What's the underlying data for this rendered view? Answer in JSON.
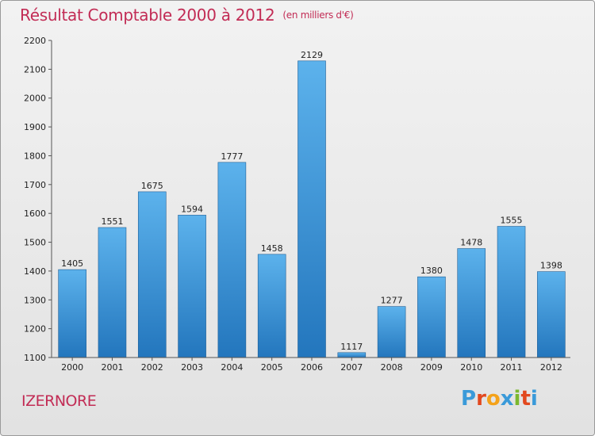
{
  "page": {
    "title": "Résultat Comptable 2000 à 2012",
    "subtitle": "(en milliers d'€)",
    "commune": "IZERNORE",
    "logo": {
      "letters": [
        "P",
        "r",
        "o",
        "x",
        "i",
        "t",
        "i"
      ],
      "colors": [
        "#3a9ad9",
        "#e2481e",
        "#f4a21a",
        "#3a9ad9",
        "#7cb82f",
        "#e2481e",
        "#3a9ad9"
      ]
    }
  },
  "chart_data": {
    "type": "bar",
    "title": "Résultat Comptable 2000 à 2012",
    "subtitle": "(en milliers d'€)",
    "categories": [
      "2000",
      "2001",
      "2002",
      "2003",
      "2004",
      "2005",
      "2006",
      "2007",
      "2008",
      "2009",
      "2010",
      "2011",
      "2012"
    ],
    "values": [
      1405,
      1551,
      1675,
      1594,
      1777,
      1458,
      2129,
      1117,
      1277,
      1380,
      1478,
      1555,
      1398
    ],
    "ylim": [
      1100,
      2200
    ],
    "yticks": [
      1100,
      1200,
      1300,
      1400,
      1500,
      1600,
      1700,
      1800,
      1900,
      2000,
      2100,
      2200
    ],
    "grid": false,
    "bar_color": "#3d93d8",
    "axis_color": "#555555"
  }
}
